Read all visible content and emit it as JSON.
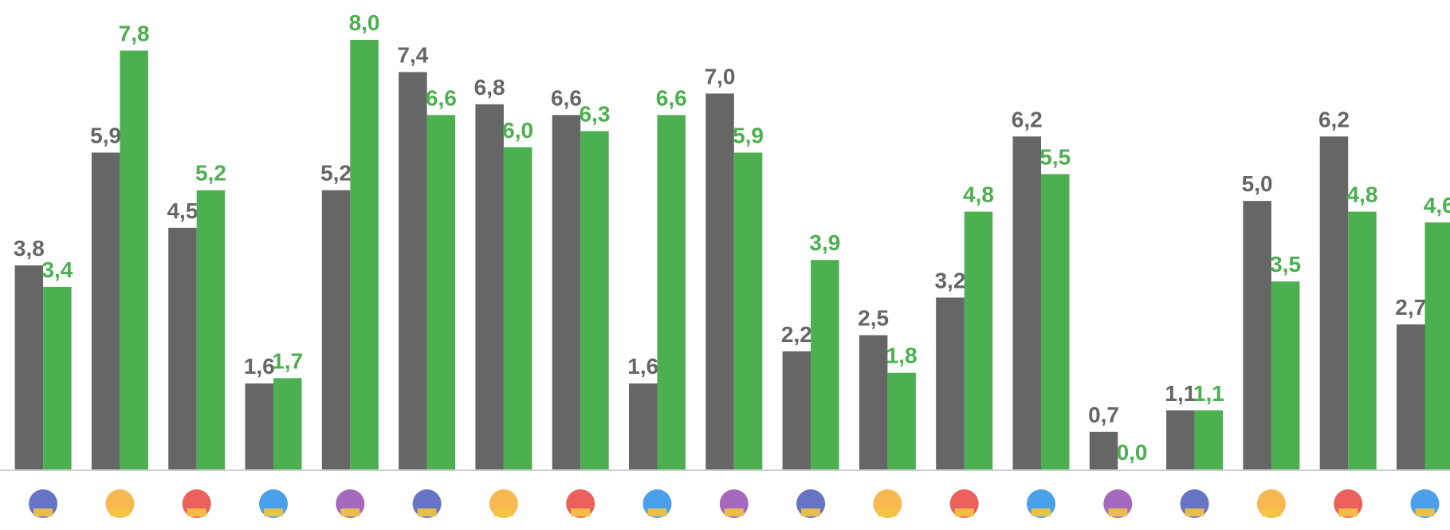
{
  "chart_data": {
    "type": "bar",
    "categories": [
      null,
      null,
      null,
      null,
      null,
      null,
      null,
      null,
      null,
      null,
      null,
      null,
      null,
      null,
      null,
      null,
      null,
      null,
      null
    ],
    "series": [
      {
        "color": "#666666",
        "values": [
          3.8,
          5.9,
          4.5,
          1.6,
          5.2,
          7.4,
          6.8,
          6.6,
          1.6,
          7.0,
          2.2,
          2.5,
          3.2,
          6.2,
          0.7,
          1.1,
          5.0,
          6.2,
          2.7
        ],
        "value_labels": [
          "3,8",
          "5,9",
          "4,5",
          "1,6",
          "5,2",
          "7,4",
          "6,8",
          "6,6",
          "1,6",
          "7,0",
          "2,2",
          "2,5",
          "3,2",
          "6,2",
          "0,7",
          "1,1",
          "5,0",
          "6,2",
          "2,7"
        ]
      },
      {
        "color": "#4caf50",
        "values": [
          3.4,
          7.8,
          5.2,
          1.7,
          8.0,
          6.6,
          6.0,
          6.3,
          6.6,
          5.9,
          3.9,
          1.8,
          4.8,
          5.5,
          0.0,
          1.1,
          3.5,
          4.8,
          4.6
        ],
        "value_labels": [
          "3,4",
          "7,8",
          "5,2",
          "1,7",
          "8,0",
          "6,6",
          "6,0",
          "6,3",
          "6,6",
          "5,9",
          "3,9",
          "1,8",
          "4,8",
          "5,5",
          "0,0",
          "1,1",
          "3,5",
          "4,8",
          "4,6"
        ]
      }
    ],
    "ylim": [
      0,
      8
    ]
  }
}
